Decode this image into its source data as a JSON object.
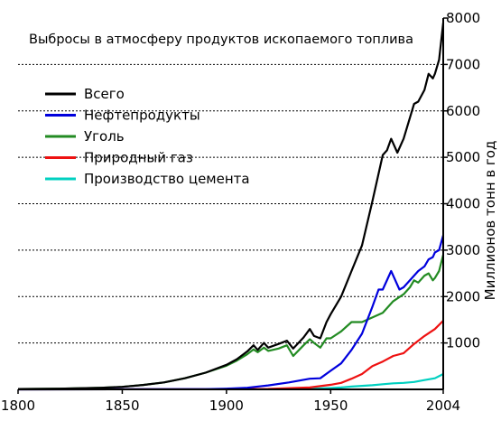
{
  "chart_data": {
    "type": "line",
    "title": "Выбросы в атмосферу продуктов ископаемого топлива",
    "xlabel": "",
    "ylabel": "Миллионов тонн в год",
    "xlim": [
      1800,
      2004
    ],
    "ylim": [
      0,
      8000
    ],
    "x_ticks": [
      "1800",
      "1850",
      "1900",
      "1950",
      "2004"
    ],
    "y_ticks": [
      "1000",
      "2000",
      "3000",
      "4000",
      "5000",
      "6000",
      "7000",
      "8000"
    ],
    "grid": "horizontal-dotted",
    "legend_position": "top-left",
    "series": [
      {
        "name": "Всего",
        "color": "#000000",
        "points": [
          [
            1800,
            8
          ],
          [
            1820,
            15
          ],
          [
            1840,
            35
          ],
          [
            1850,
            55
          ],
          [
            1860,
            95
          ],
          [
            1870,
            150
          ],
          [
            1880,
            240
          ],
          [
            1890,
            360
          ],
          [
            1900,
            530
          ],
          [
            1905,
            650
          ],
          [
            1910,
            820
          ],
          [
            1913,
            950
          ],
          [
            1915,
            850
          ],
          [
            1918,
            1000
          ],
          [
            1920,
            900
          ],
          [
            1925,
            980
          ],
          [
            1929,
            1050
          ],
          [
            1932,
            880
          ],
          [
            1937,
            1120
          ],
          [
            1940,
            1300
          ],
          [
            1942,
            1150
          ],
          [
            1945,
            1100
          ],
          [
            1948,
            1450
          ],
          [
            1950,
            1620
          ],
          [
            1955,
            2000
          ],
          [
            1960,
            2550
          ],
          [
            1965,
            3100
          ],
          [
            1970,
            4050
          ],
          [
            1973,
            4650
          ],
          [
            1975,
            5050
          ],
          [
            1977,
            5150
          ],
          [
            1979,
            5400
          ],
          [
            1980,
            5300
          ],
          [
            1982,
            5100
          ],
          [
            1985,
            5400
          ],
          [
            1990,
            6150
          ],
          [
            1992,
            6200
          ],
          [
            1995,
            6450
          ],
          [
            1997,
            6800
          ],
          [
            1999,
            6700
          ],
          [
            2000,
            6800
          ],
          [
            2002,
            7100
          ],
          [
            2004,
            7900
          ]
        ]
      },
      {
        "name": "Нефтепродукты",
        "color": "#0000dd",
        "points": [
          [
            1800,
            0
          ],
          [
            1890,
            5
          ],
          [
            1900,
            15
          ],
          [
            1910,
            35
          ],
          [
            1920,
            85
          ],
          [
            1930,
            150
          ],
          [
            1940,
            230
          ],
          [
            1945,
            240
          ],
          [
            1950,
            400
          ],
          [
            1955,
            560
          ],
          [
            1960,
            850
          ],
          [
            1965,
            1200
          ],
          [
            1970,
            1780
          ],
          [
            1973,
            2150
          ],
          [
            1975,
            2150
          ],
          [
            1979,
            2550
          ],
          [
            1980,
            2450
          ],
          [
            1983,
            2150
          ],
          [
            1985,
            2200
          ],
          [
            1990,
            2450
          ],
          [
            1992,
            2550
          ],
          [
            1995,
            2650
          ],
          [
            1997,
            2800
          ],
          [
            1999,
            2850
          ],
          [
            2000,
            2950
          ],
          [
            2002,
            3000
          ],
          [
            2004,
            3320
          ]
        ]
      },
      {
        "name": "Уголь",
        "color": "#228b22",
        "points": [
          [
            1800,
            8
          ],
          [
            1820,
            15
          ],
          [
            1840,
            35
          ],
          [
            1850,
            55
          ],
          [
            1860,
            95
          ],
          [
            1870,
            150
          ],
          [
            1880,
            240
          ],
          [
            1890,
            360
          ],
          [
            1900,
            510
          ],
          [
            1905,
            620
          ],
          [
            1910,
            760
          ],
          [
            1913,
            860
          ],
          [
            1915,
            800
          ],
          [
            1918,
            900
          ],
          [
            1920,
            830
          ],
          [
            1925,
            880
          ],
          [
            1929,
            950
          ],
          [
            1932,
            720
          ],
          [
            1937,
            950
          ],
          [
            1940,
            1080
          ],
          [
            1942,
            1000
          ],
          [
            1945,
            900
          ],
          [
            1948,
            1100
          ],
          [
            1950,
            1100
          ],
          [
            1955,
            1250
          ],
          [
            1960,
            1450
          ],
          [
            1965,
            1450
          ],
          [
            1970,
            1550
          ],
          [
            1975,
            1650
          ],
          [
            1980,
            1900
          ],
          [
            1985,
            2050
          ],
          [
            1988,
            2200
          ],
          [
            1990,
            2350
          ],
          [
            1992,
            2300
          ],
          [
            1995,
            2450
          ],
          [
            1997,
            2500
          ],
          [
            1999,
            2350
          ],
          [
            2000,
            2400
          ],
          [
            2002,
            2550
          ],
          [
            2004,
            2900
          ]
        ]
      },
      {
        "name": "Природный газ",
        "color": "#ee1111",
        "points": [
          [
            1800,
            0
          ],
          [
            1900,
            3
          ],
          [
            1920,
            10
          ],
          [
            1940,
            40
          ],
          [
            1950,
            100
          ],
          [
            1955,
            140
          ],
          [
            1960,
            230
          ],
          [
            1965,
            330
          ],
          [
            1970,
            500
          ],
          [
            1975,
            600
          ],
          [
            1980,
            720
          ],
          [
            1985,
            780
          ],
          [
            1990,
            980
          ],
          [
            1995,
            1150
          ],
          [
            2000,
            1300
          ],
          [
            2004,
            1480
          ]
        ]
      },
      {
        "name": "Производство цемента",
        "color": "#00d0c0",
        "points": [
          [
            1800,
            0
          ],
          [
            1900,
            2
          ],
          [
            1920,
            5
          ],
          [
            1940,
            15
          ],
          [
            1950,
            30
          ],
          [
            1955,
            40
          ],
          [
            1960,
            60
          ],
          [
            1965,
            75
          ],
          [
            1970,
            90
          ],
          [
            1975,
            110
          ],
          [
            1980,
            130
          ],
          [
            1985,
            140
          ],
          [
            1990,
            160
          ],
          [
            1995,
            200
          ],
          [
            2000,
            240
          ],
          [
            2004,
            330
          ]
        ]
      }
    ]
  }
}
